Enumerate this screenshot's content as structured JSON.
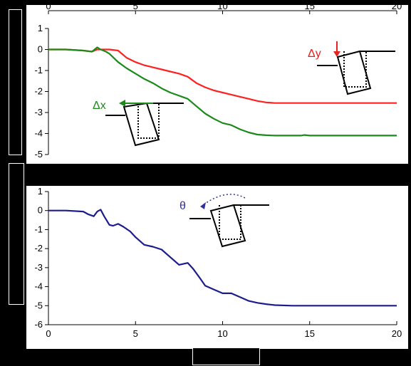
{
  "chart_data": [
    {
      "type": "line",
      "panel": "top",
      "x_ticks": [
        "0",
        "5",
        "10",
        "15",
        "20"
      ],
      "x_tick_position": "top",
      "y_ticks": [
        "1",
        "0",
        "-1",
        "-2",
        "-3",
        "-4",
        "-5"
      ],
      "xlim": [
        0,
        20
      ],
      "ylim": [
        -5,
        1
      ],
      "grid": false,
      "series": [
        {
          "name": "Δy",
          "color": "#ff2020",
          "x": [
            0,
            1,
            2,
            2.5,
            2.8,
            3,
            3.5,
            4,
            4.5,
            5,
            5.5,
            6,
            6.5,
            7,
            7.5,
            8,
            8.5,
            9,
            9.5,
            10,
            10.5,
            11,
            11.5,
            12,
            12.5,
            13,
            14,
            15,
            16,
            17,
            18,
            19,
            20
          ],
          "y": [
            0,
            0,
            -0.05,
            -0.1,
            0,
            0,
            0,
            -0.05,
            -0.4,
            -0.6,
            -0.75,
            -0.85,
            -0.95,
            -1.05,
            -1.15,
            -1.3,
            -1.6,
            -1.8,
            -1.95,
            -2.05,
            -2.15,
            -2.25,
            -2.35,
            -2.45,
            -2.52,
            -2.55,
            -2.55,
            -2.55,
            -2.55,
            -2.55,
            -2.55,
            -2.55,
            -2.55
          ]
        },
        {
          "name": "Δx",
          "color": "#1a8a1a",
          "x": [
            0,
            1,
            2,
            2.5,
            2.8,
            3,
            3.3,
            3.5,
            4,
            4.5,
            5,
            5.5,
            6,
            6.5,
            7,
            7.5,
            8,
            8.5,
            9,
            9.5,
            10,
            10.5,
            11,
            11.5,
            12,
            12.5,
            13,
            14,
            14.5,
            14.7,
            15,
            16,
            17,
            18,
            19,
            20
          ],
          "y": [
            0,
            0,
            -0.05,
            -0.1,
            0.1,
            0,
            -0.1,
            -0.2,
            -0.6,
            -0.9,
            -1.15,
            -1.4,
            -1.6,
            -1.85,
            -2.05,
            -2.2,
            -2.35,
            -2.7,
            -3.05,
            -3.3,
            -3.5,
            -3.6,
            -3.8,
            -3.95,
            -4.05,
            -4.08,
            -4.1,
            -4.1,
            -4.1,
            -4.07,
            -4.1,
            -4.1,
            -4.1,
            -4.1,
            -4.1,
            -4.1
          ]
        }
      ]
    },
    {
      "type": "line",
      "panel": "bottom",
      "x_ticks": [
        "0",
        "5",
        "10",
        "15",
        "20"
      ],
      "x_tick_position": "bottom",
      "y_ticks": [
        "1",
        "0",
        "-1",
        "-2",
        "-3",
        "-4",
        "-5",
        "-6"
      ],
      "xlim": [
        0,
        20
      ],
      "ylim": [
        -6,
        1
      ],
      "grid": false,
      "series": [
        {
          "name": "θ",
          "color": "#1c1c8c",
          "x": [
            0,
            1,
            2,
            2.3,
            2.6,
            2.8,
            3,
            3.2,
            3.5,
            3.7,
            4,
            4.3,
            4.7,
            5,
            5.5,
            6,
            6.5,
            7,
            7.5,
            8,
            8.3,
            8.7,
            9,
            9.5,
            10,
            10.5,
            11,
            11.5,
            12,
            12.5,
            13,
            14,
            15,
            16,
            17,
            18,
            19,
            20
          ],
          "y": [
            0,
            0,
            -0.05,
            -0.2,
            -0.3,
            -0.05,
            0.05,
            -0.3,
            -0.75,
            -0.8,
            -0.7,
            -0.85,
            -1.1,
            -1.4,
            -1.8,
            -1.9,
            -2.05,
            -2.45,
            -2.85,
            -2.75,
            -3.05,
            -3.55,
            -3.95,
            -4.15,
            -4.35,
            -4.35,
            -4.55,
            -4.75,
            -4.85,
            -4.92,
            -4.97,
            -5,
            -5,
            -5,
            -5,
            -5,
            -5,
            -5
          ]
        }
      ]
    }
  ],
  "annotations": {
    "dy_label": "Δy",
    "dx_label": "Δx",
    "theta_label": "θ",
    "dy_color": "#e82020",
    "dx_color": "#1a8a1a",
    "theta_color": "#3030a0"
  }
}
